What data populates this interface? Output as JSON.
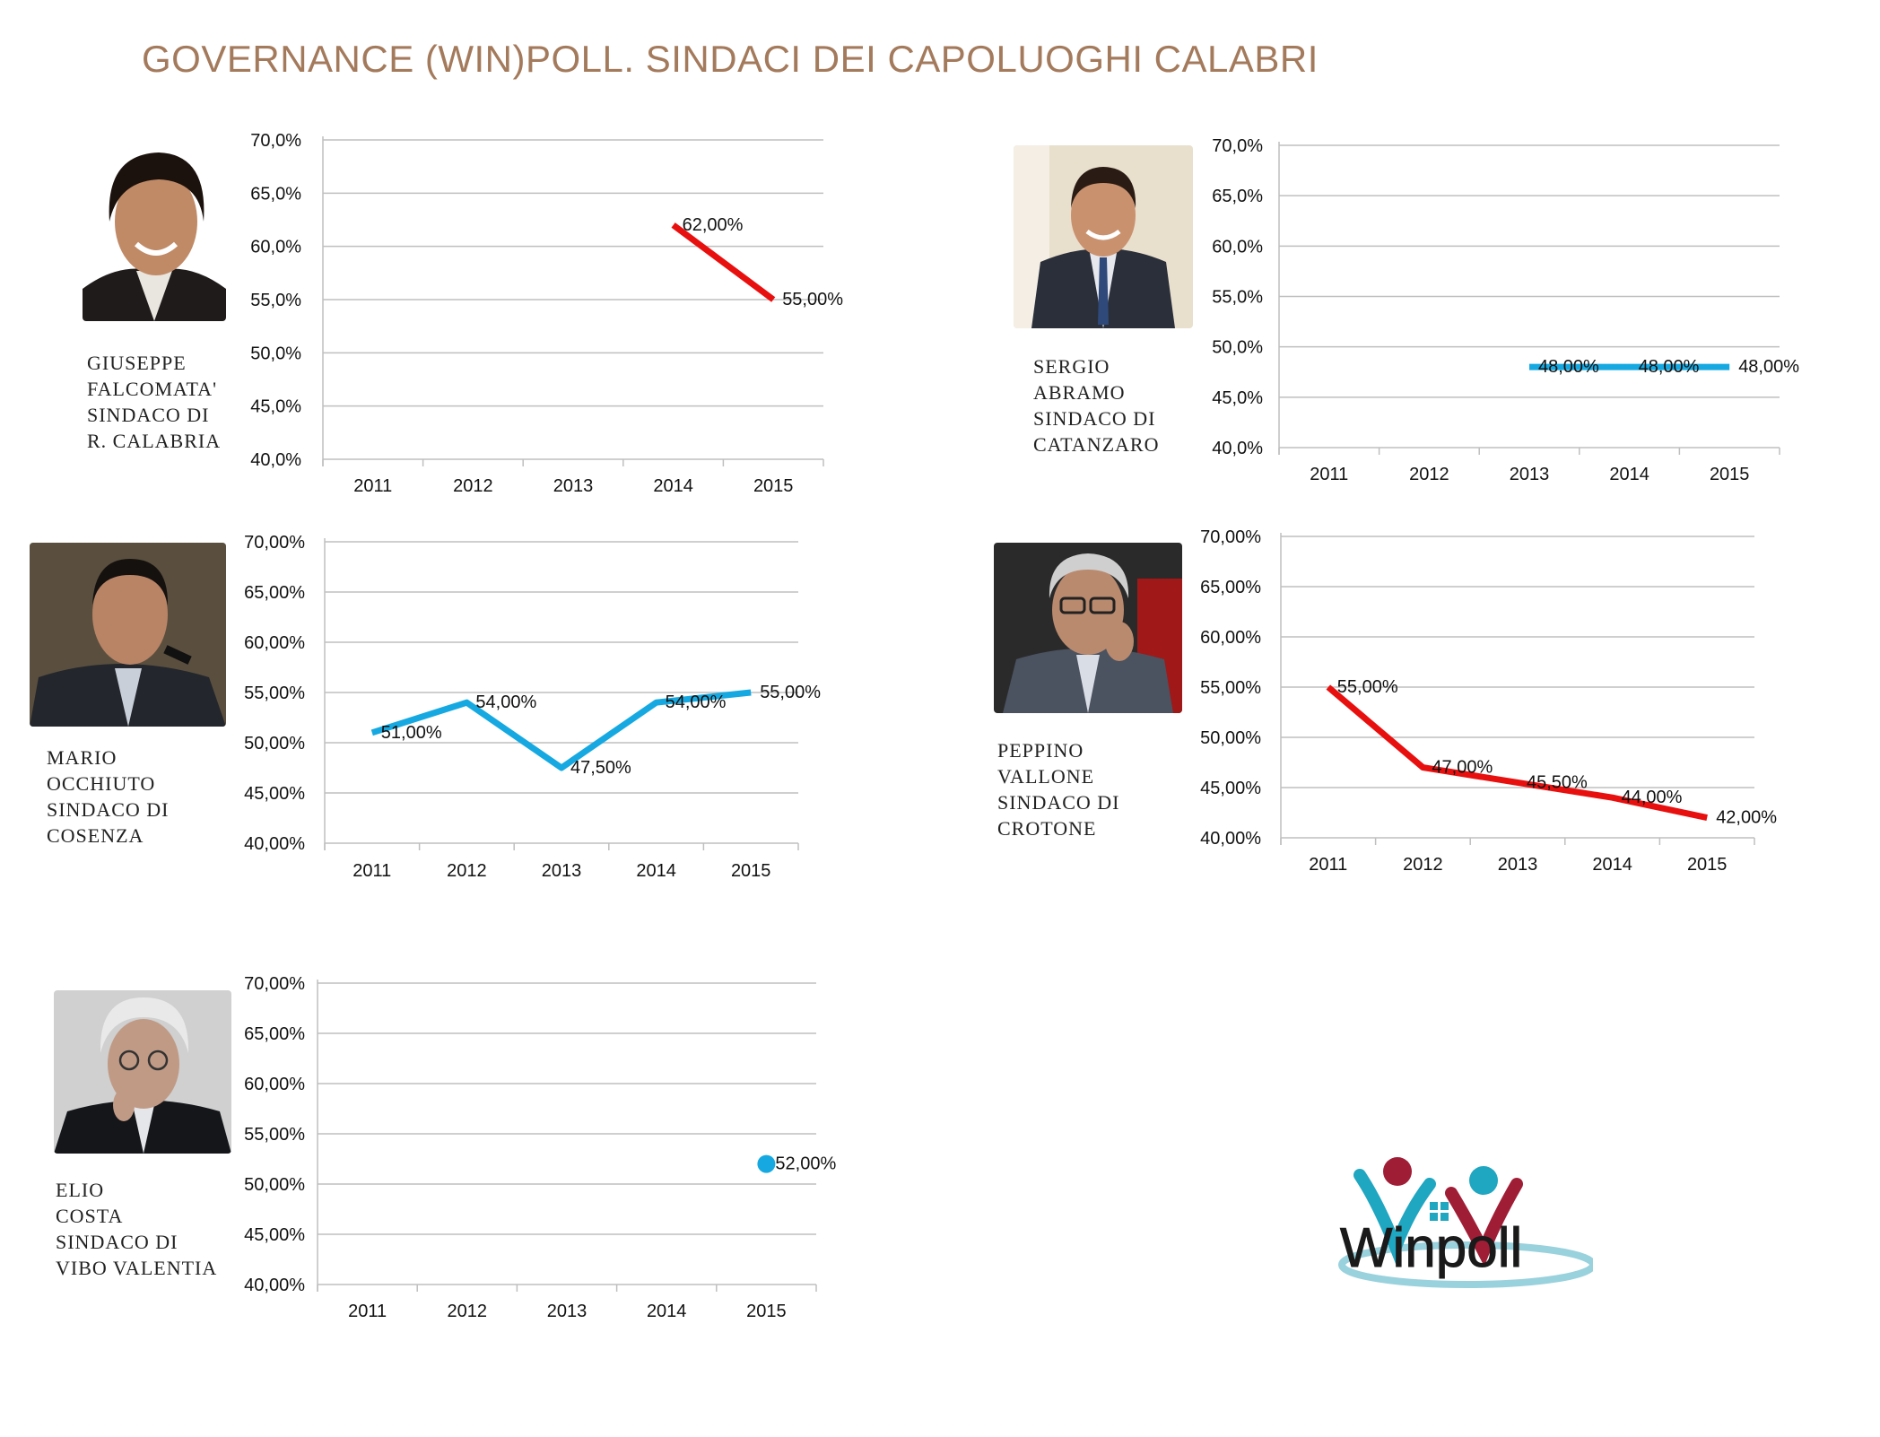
{
  "title": "GOVERNANCE (WIN)POLL. SINDACI DEI CAPOLUOGHI CALABRI",
  "colors": {
    "title": "#a47a5c",
    "red_series": "#e8100f",
    "blue_series": "#16a9e1",
    "grid": "#bfbfbf"
  },
  "logo": {
    "text": "Winpoll",
    "icon": "winpoll-logo-people-icon"
  },
  "chart_data": [
    {
      "id": "reggio",
      "type": "line",
      "caption": [
        "GIUSEPPE",
        "FALCOMATA'",
        "SINDACO DI",
        "R. CALABRIA"
      ],
      "photo_icon": "mayor-portrait-icon",
      "categories": [
        "2011",
        "2012",
        "2013",
        "2014",
        "2015"
      ],
      "yticks": [
        "70,0%",
        "65,0%",
        "60,0%",
        "55,0%",
        "50,0%",
        "45,0%",
        "40,0%"
      ],
      "ylim": [
        40,
        70
      ],
      "color": "#e8100f",
      "values": [
        null,
        null,
        null,
        62,
        55
      ],
      "labels": [
        "",
        "",
        "",
        "62,00%",
        "55,00%"
      ]
    },
    {
      "id": "catanzaro",
      "type": "line",
      "caption": [
        "SERGIO",
        "ABRAMO",
        "SINDACO DI",
        "CATANZARO"
      ],
      "photo_icon": "mayor-portrait-icon",
      "categories": [
        "2011",
        "2012",
        "2013",
        "2014",
        "2015"
      ],
      "yticks": [
        "70,0%",
        "65,0%",
        "60,0%",
        "55,0%",
        "50,0%",
        "45,0%",
        "40,0%"
      ],
      "ylim": [
        40,
        70
      ],
      "color": "#16a9e1",
      "values": [
        null,
        null,
        48,
        48,
        48
      ],
      "labels": [
        "",
        "",
        "48,00%",
        "48,00%",
        "48,00%"
      ]
    },
    {
      "id": "cosenza",
      "type": "line",
      "caption": [
        "MARIO",
        "OCCHIUTO",
        "SINDACO DI",
        "COSENZA"
      ],
      "photo_icon": "mayor-portrait-icon",
      "categories": [
        "2011",
        "2012",
        "2013",
        "2014",
        "2015"
      ],
      "yticks": [
        "70,00%",
        "65,00%",
        "60,00%",
        "55,00%",
        "50,00%",
        "45,00%",
        "40,00%"
      ],
      "ylim": [
        40,
        70
      ],
      "color": "#16a9e1",
      "values": [
        51,
        54,
        47.5,
        54,
        55
      ],
      "labels": [
        "51,00%",
        "54,00%",
        "47,50%",
        "54,00%",
        "55,00%"
      ]
    },
    {
      "id": "crotone",
      "type": "line",
      "caption": [
        "PEPPINO",
        "VALLONE",
        "SINDACO DI",
        "CROTONE"
      ],
      "photo_icon": "mayor-portrait-icon",
      "categories": [
        "2011",
        "2012",
        "2013",
        "2014",
        "2015"
      ],
      "yticks": [
        "70,00%",
        "65,00%",
        "60,00%",
        "55,00%",
        "50,00%",
        "45,00%",
        "40,00%"
      ],
      "ylim": [
        40,
        70
      ],
      "color": "#e8100f",
      "values": [
        55,
        47,
        45.5,
        44,
        42
      ],
      "labels": [
        "55,00%",
        "47,00%",
        "45,50%",
        "44,00%",
        "42,00%"
      ]
    },
    {
      "id": "vibo",
      "type": "scatter",
      "caption": [
        "ELIO",
        "COSTA",
        "SINDACO DI",
        "VIBO VALENTIA"
      ],
      "photo_icon": "mayor-portrait-icon",
      "categories": [
        "2011",
        "2012",
        "2013",
        "2014",
        "2015"
      ],
      "yticks": [
        "70,00%",
        "65,00%",
        "60,00%",
        "55,00%",
        "50,00%",
        "45,00%",
        "40,00%"
      ],
      "ylim": [
        40,
        70
      ],
      "color": "#16a9e1",
      "values": [
        null,
        null,
        null,
        null,
        52
      ],
      "labels": [
        "",
        "",
        "",
        "",
        "52,00%"
      ]
    }
  ]
}
